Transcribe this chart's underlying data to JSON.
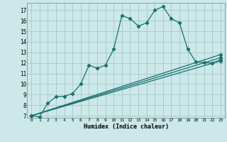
{
  "title": "",
  "xlabel": "Humidex (Indice chaleur)",
  "bg_color": "#cce8e8",
  "grid_color": "#aacccc",
  "line_color": "#1a7070",
  "xlim": [
    -0.5,
    23.5
  ],
  "ylim": [
    6.8,
    17.7
  ],
  "yticks": [
    7,
    8,
    9,
    10,
    11,
    12,
    13,
    14,
    15,
    16,
    17
  ],
  "xticks": [
    0,
    1,
    2,
    3,
    4,
    5,
    6,
    7,
    8,
    9,
    10,
    11,
    12,
    13,
    14,
    15,
    16,
    17,
    18,
    19,
    20,
    21,
    22,
    23
  ],
  "series": [
    [
      0,
      7.0
    ],
    [
      1,
      6.9
    ],
    [
      2,
      8.2
    ],
    [
      3,
      8.8
    ],
    [
      4,
      8.85
    ],
    [
      5,
      9.1
    ],
    [
      6,
      10.0
    ],
    [
      7,
      11.8
    ],
    [
      8,
      11.5
    ],
    [
      9,
      11.8
    ],
    [
      10,
      13.3
    ],
    [
      11,
      16.5
    ],
    [
      12,
      16.2
    ],
    [
      13,
      15.5
    ],
    [
      14,
      15.8
    ],
    [
      15,
      17.0
    ],
    [
      16,
      17.35
    ],
    [
      17,
      16.2
    ],
    [
      18,
      15.8
    ],
    [
      19,
      13.3
    ],
    [
      20,
      12.1
    ],
    [
      21,
      12.05
    ],
    [
      22,
      12.0
    ],
    [
      23,
      12.3
    ]
  ],
  "line2": [
    [
      0,
      7.0
    ],
    [
      23,
      12.5
    ]
  ],
  "line3": [
    [
      0,
      7.0
    ],
    [
      23,
      12.8
    ]
  ],
  "line4": [
    [
      0,
      7.0
    ],
    [
      23,
      12.2
    ]
  ],
  "marker_series": [
    [
      0,
      7.0
    ],
    [
      1,
      6.9
    ],
    [
      2,
      8.2
    ],
    [
      3,
      8.8
    ],
    [
      4,
      8.85
    ],
    [
      5,
      9.1
    ],
    [
      6,
      10.0
    ],
    [
      7,
      11.8
    ],
    [
      8,
      11.5
    ],
    [
      9,
      11.8
    ],
    [
      10,
      13.3
    ],
    [
      11,
      16.5
    ],
    [
      12,
      16.2
    ],
    [
      13,
      15.5
    ],
    [
      14,
      15.8
    ],
    [
      15,
      17.0
    ],
    [
      16,
      17.35
    ],
    [
      17,
      16.2
    ],
    [
      18,
      15.8
    ],
    [
      19,
      13.3
    ],
    [
      20,
      12.1
    ],
    [
      21,
      12.05
    ],
    [
      22,
      12.0
    ],
    [
      23,
      12.3
    ]
  ]
}
